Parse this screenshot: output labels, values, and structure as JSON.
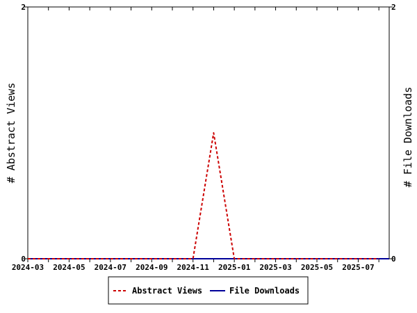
{
  "chart_data": {
    "type": "line",
    "x": [
      "2024-03",
      "2024-04",
      "2024-05",
      "2024-06",
      "2024-07",
      "2024-08",
      "2024-09",
      "2024-10",
      "2024-11",
      "2024-12",
      "2025-01",
      "2025-02",
      "2025-03",
      "2025-04",
      "2025-05",
      "2025-06",
      "2025-07",
      "2025-08"
    ],
    "x_tick_labels": [
      "2024-03",
      "2024-05",
      "2024-07",
      "2024-09",
      "2024-11",
      "2025-01",
      "2025-03",
      "2025-05",
      "2025-07"
    ],
    "series": [
      {
        "name": "Abstract Views",
        "axis": "left",
        "color": "#cc0000",
        "style": "dashed",
        "values": [
          0,
          0,
          0,
          0,
          0,
          0,
          0,
          0,
          0,
          1,
          0,
          0,
          0,
          0,
          0,
          0,
          0,
          0
        ]
      },
      {
        "name": "File Downloads",
        "axis": "right",
        "color": "#000099",
        "style": "solid",
        "values": [
          0,
          0,
          0,
          0,
          0,
          0,
          0,
          0,
          0,
          0,
          0,
          0,
          0,
          0,
          0,
          0,
          0,
          0
        ]
      }
    ],
    "ylabel_left": "# Abstract Views",
    "ylabel_right": "# File Downloads",
    "ylim_left": [
      0,
      2
    ],
    "ylim_right": [
      0,
      2
    ],
    "y_ticks_left": [
      "0",
      "2"
    ],
    "y_ticks_right": [
      "0",
      "2"
    ],
    "grid": false,
    "legend_position": "bottom-center"
  }
}
